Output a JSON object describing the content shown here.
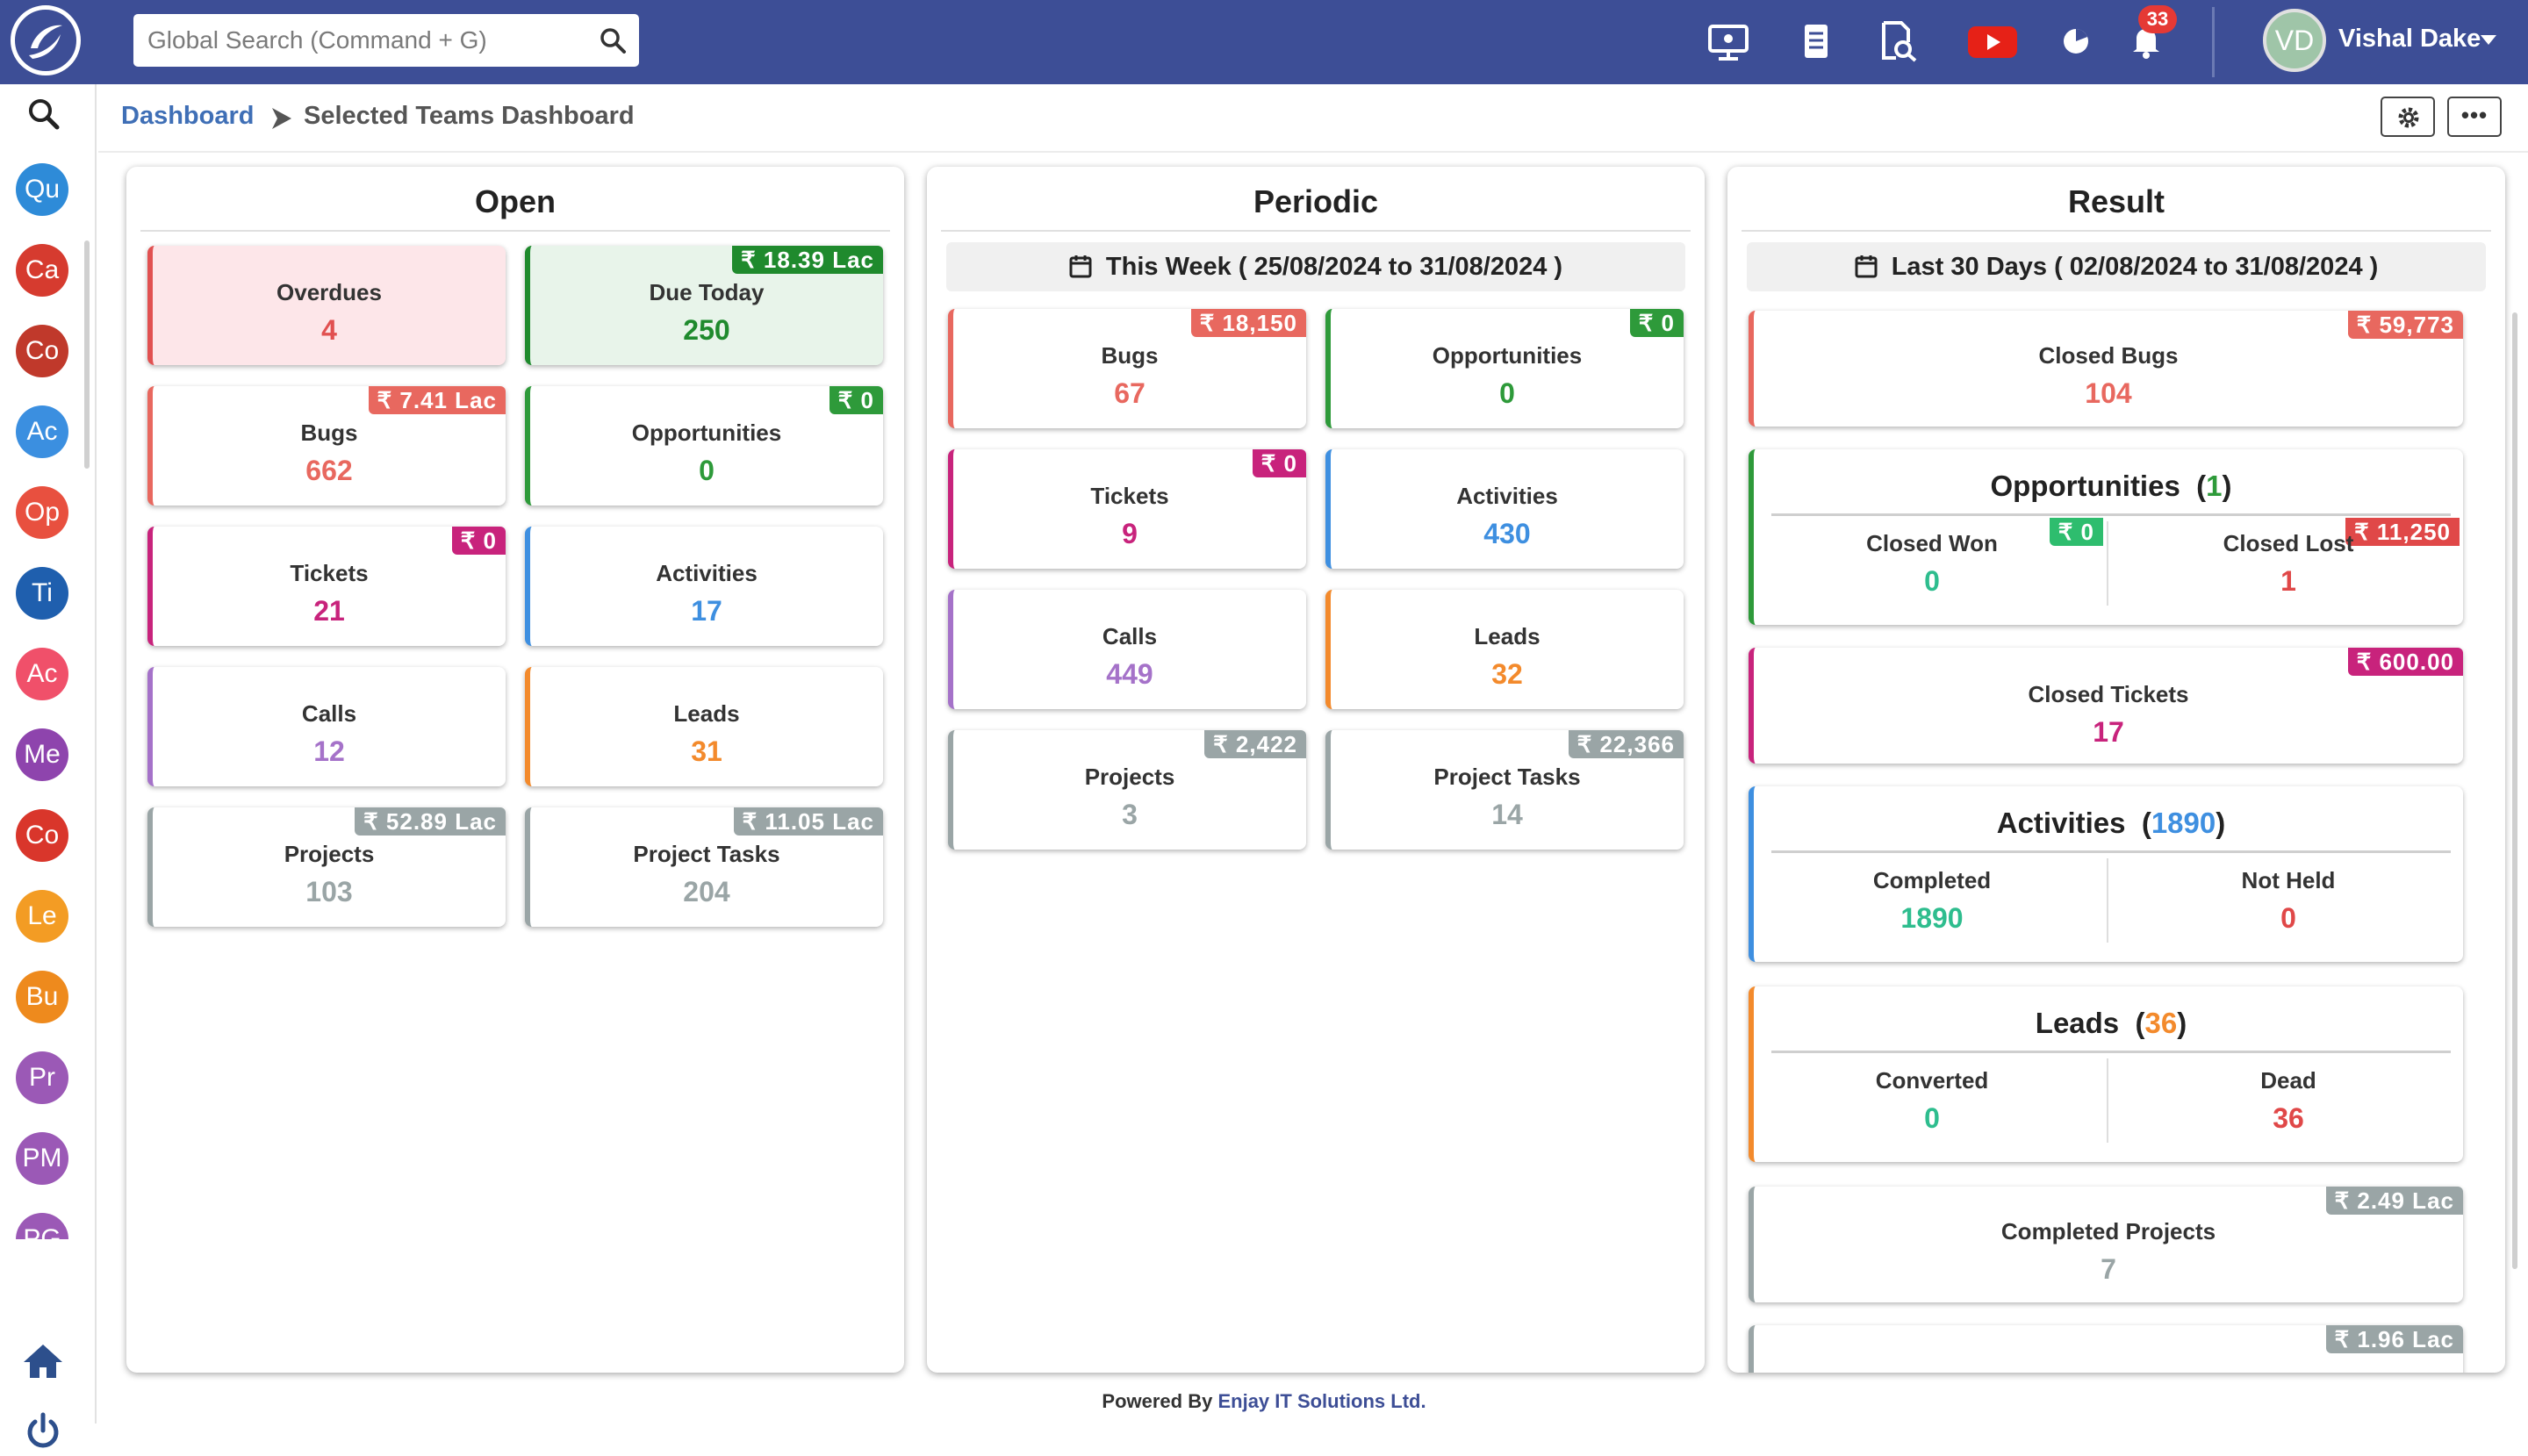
{
  "header": {
    "search_placeholder": "Global Search (Command + G)",
    "notification_count": "33",
    "user_initials": "VD",
    "user_name": "Vishal Dake",
    "icons": [
      "desktop-icon",
      "notes-icon",
      "search-doc-icon",
      "youtube-icon",
      "pie-icon",
      "bell-icon"
    ],
    "colors": {
      "topbar": "#3d4e96",
      "youtube": "#e62117",
      "badge": "#e53935"
    }
  },
  "sidebar": {
    "items": [
      {
        "label": "Qu",
        "color": "#2e8bd8"
      },
      {
        "label": "Ca",
        "color": "#d63b2f"
      },
      {
        "label": "Co",
        "color": "#c0392b"
      },
      {
        "label": "Ac",
        "color": "#3b8fe0"
      },
      {
        "label": "Op",
        "color": "#e8503f"
      },
      {
        "label": "Ti",
        "color": "#1f5fae"
      },
      {
        "label": "Ac",
        "color": "#f0506a"
      },
      {
        "label": "Me",
        "color": "#8e44ad"
      },
      {
        "label": "Co",
        "color": "#d9362b"
      },
      {
        "label": "Le",
        "color": "#f39c24"
      },
      {
        "label": "Bu",
        "color": "#ee8a1d"
      },
      {
        "label": "Pr",
        "color": "#9b59b6"
      },
      {
        "label": "PM",
        "color": "#9b59b6"
      },
      {
        "label": "PG",
        "color": "#9b59b6"
      }
    ]
  },
  "breadcrumb": {
    "home": "Dashboard",
    "current": "Selected Teams Dashboard"
  },
  "open": {
    "title": "Open",
    "cards": [
      {
        "label": "Overdues",
        "value": "4",
        "badge": "",
        "color": "#e15151",
        "bg": "#fde6e9"
      },
      {
        "label": "Due Today",
        "value": "250",
        "badge": "₹ 18.39 Lac",
        "color": "#1f8a2d",
        "bg": "#e8f4ea"
      },
      {
        "label": "Bugs",
        "value": "662",
        "badge": "₹ 7.41 Lac",
        "color": "#e8685f",
        "bg": "#ffffff"
      },
      {
        "label": "Opportunities",
        "value": "0",
        "badge": "₹ 0",
        "color": "#2e9a3a",
        "bg": "#ffffff"
      },
      {
        "label": "Tickets",
        "value": "21",
        "badge": "₹ 0",
        "color": "#c8237c",
        "bg": "#ffffff"
      },
      {
        "label": "Activities",
        "value": "17",
        "badge": "",
        "color": "#3e8fe0",
        "bg": "#ffffff"
      },
      {
        "label": "Calls",
        "value": "12",
        "badge": "",
        "color": "#a572c9",
        "bg": "#ffffff"
      },
      {
        "label": "Leads",
        "value": "31",
        "badge": "",
        "color": "#f38a2c",
        "bg": "#ffffff"
      },
      {
        "label": "Projects",
        "value": "103",
        "badge": "₹ 52.89 Lac",
        "color": "#9aa5a6",
        "bg": "#ffffff"
      },
      {
        "label": "Project Tasks",
        "value": "204",
        "badge": "₹ 11.05 Lac",
        "color": "#9aa5a6",
        "bg": "#ffffff"
      }
    ]
  },
  "periodic": {
    "title": "Periodic",
    "range": "This Week ( 25/08/2024 to 31/08/2024 )",
    "cards": [
      {
        "label": "Bugs",
        "value": "67",
        "badge": "₹ 18,150",
        "color": "#e8685f"
      },
      {
        "label": "Opportunities",
        "value": "0",
        "badge": "₹ 0",
        "color": "#2e9a3a"
      },
      {
        "label": "Tickets",
        "value": "9",
        "badge": "₹ 0",
        "color": "#c8237c"
      },
      {
        "label": "Activities",
        "value": "430",
        "badge": "",
        "color": "#3e8fe0"
      },
      {
        "label": "Calls",
        "value": "449",
        "badge": "",
        "color": "#a572c9"
      },
      {
        "label": "Leads",
        "value": "32",
        "badge": "",
        "color": "#f38a2c"
      },
      {
        "label": "Projects",
        "value": "3",
        "badge": "₹ 2,422",
        "color": "#9aa5a6"
      },
      {
        "label": "Project Tasks",
        "value": "14",
        "badge": "₹ 22,366",
        "color": "#9aa5a6"
      }
    ]
  },
  "result": {
    "title": "Result",
    "range": "Last 30 Days ( 02/08/2024 to 31/08/2024 )",
    "closed_bugs": {
      "label": "Closed Bugs",
      "value": "104",
      "badge": "₹ 59,773",
      "color": "#e8685f"
    },
    "opportunities": {
      "title": "Opportunities",
      "count": "1",
      "won_label": "Closed Won",
      "won_value": "0",
      "won_badge": "₹ 0",
      "lost_label": "Closed Lost",
      "lost_value": "1",
      "lost_badge": "₹ 11,250",
      "color": "#2e9a3a"
    },
    "closed_tickets": {
      "label": "Closed Tickets",
      "value": "17",
      "badge": "₹ 600.00",
      "color": "#c8237c"
    },
    "activities": {
      "title": "Activities",
      "count": "1890",
      "completed_label": "Completed",
      "completed_value": "1890",
      "notheld_label": "Not Held",
      "notheld_value": "0",
      "color": "#3e8fe0"
    },
    "leads": {
      "title": "Leads",
      "count": "36",
      "converted_label": "Converted",
      "converted_value": "0",
      "dead_label": "Dead",
      "dead_value": "36",
      "color": "#f38a2c"
    },
    "completed_projects": {
      "label": "Completed Projects",
      "value": "7",
      "badge": "₹ 2.49 Lac",
      "color": "#9aa5a6"
    },
    "completed_tasks": {
      "badge": "₹ 1.96 Lac",
      "color": "#9aa5a6"
    }
  },
  "footer": {
    "prefix": "Powered By",
    "company": "Enjay IT Solutions Ltd."
  }
}
